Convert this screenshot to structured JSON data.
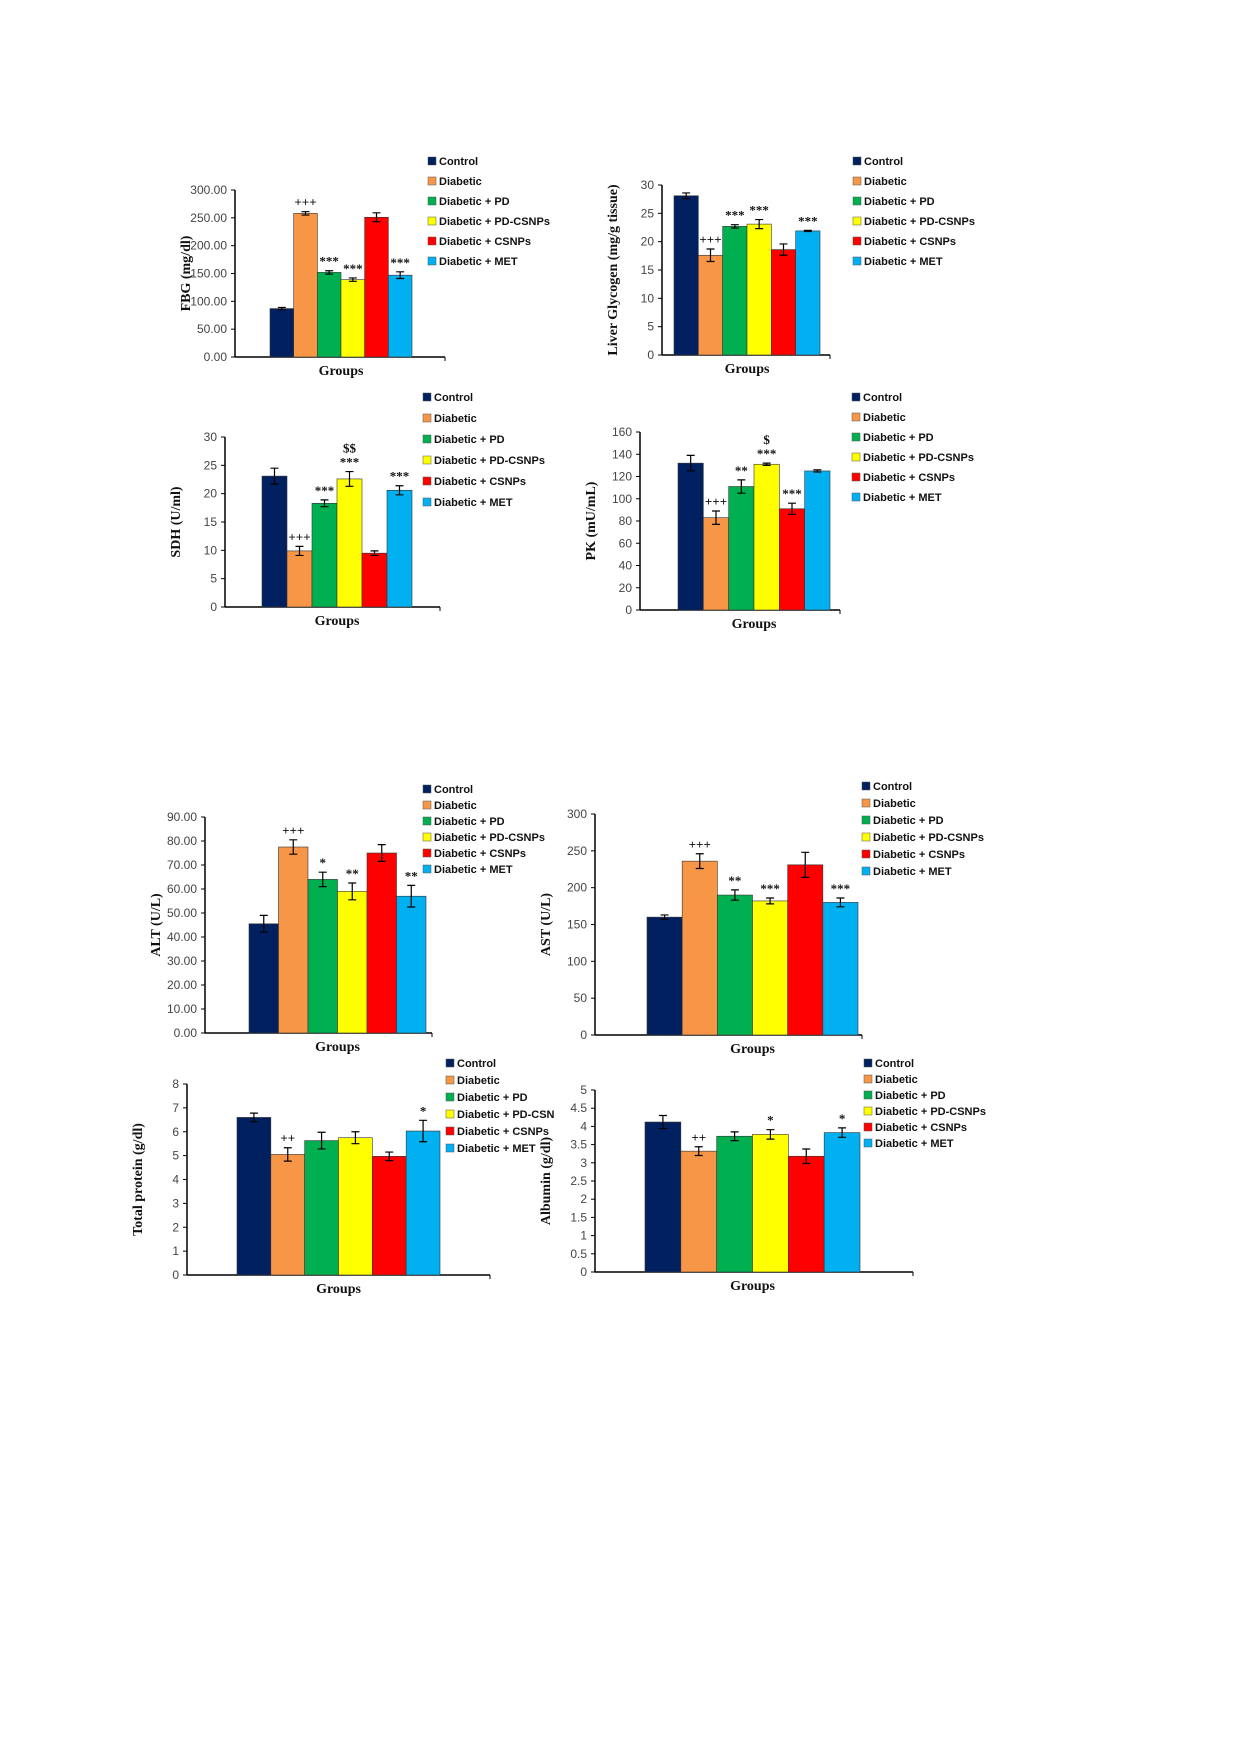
{
  "colors": [
    "#002060",
    "#f79646",
    "#00b050",
    "#ffff00",
    "#ff0000",
    "#00b0f0"
  ],
  "chart_data": [
    {
      "type": "bar",
      "ylabel": "FBG (mg/dl)",
      "xlabel": "Groups",
      "ylim": [
        0,
        300
      ],
      "yticks": [
        "0.00",
        "50.00",
        "100.00",
        "150.00",
        "200.00",
        "250.00",
        "300.00"
      ],
      "legend": [
        "Control",
        "Diabetic",
        "Diabetic + PD",
        "Diabetic + PD-CSNPs",
        "Diabetic + CSNPs",
        "Diabetic + MET"
      ],
      "values": [
        87,
        258,
        152,
        139,
        251,
        147
      ],
      "errors": [
        2,
        3,
        3,
        3,
        8,
        6
      ],
      "annotations": [
        "",
        "+++",
        "***",
        "***",
        "",
        "***"
      ]
    },
    {
      "type": "bar",
      "ylabel": "Liver Glycogen (mg/g tissue)",
      "xlabel": "Groups",
      "ylim": [
        0,
        30
      ],
      "yticks": [
        "0",
        "5",
        "10",
        "15",
        "20",
        "25",
        "30"
      ],
      "legend": [
        "Control",
        "Diabetic",
        "Diabetic + PD",
        "Diabetic + PD-CSNPs",
        "Diabetic + CSNPs",
        "Diabetic + MET"
      ],
      "values": [
        28.1,
        17.6,
        22.7,
        23.1,
        18.6,
        21.9
      ],
      "errors": [
        0.5,
        1.1,
        0.3,
        0.8,
        1.0,
        0.1
      ],
      "annotations": [
        "",
        "+++",
        "***",
        "***",
        "",
        "***"
      ]
    },
    {
      "type": "bar",
      "ylabel": "SDH (U/ml)",
      "xlabel": "Groups",
      "ylim": [
        0,
        30
      ],
      "yticks": [
        "0",
        "5",
        "10",
        "15",
        "20",
        "25",
        "30"
      ],
      "legend": [
        "Control",
        "Diabetic",
        "Diabetic + PD",
        "Diabetic + PD-CSNPs",
        "Diabetic + CSNPs",
        "Diabetic + MET"
      ],
      "values": [
        23.1,
        9.9,
        18.3,
        22.6,
        9.5,
        20.6
      ],
      "errors": [
        1.4,
        0.8,
        0.6,
        1.3,
        0.4,
        0.8
      ],
      "annotations": [
        "",
        "+++",
        "***",
        "***",
        "",
        "***"
      ],
      "annotations2": [
        "",
        "",
        "",
        "$$",
        "",
        ""
      ]
    },
    {
      "type": "bar",
      "ylabel": "PK (mU/mL)",
      "xlabel": "Groups",
      "ylim": [
        0,
        160
      ],
      "yticks": [
        "0",
        "20",
        "40",
        "60",
        "80",
        "100",
        "120",
        "140",
        "160"
      ],
      "legend": [
        "Control",
        "Diabetic",
        "Diabetic + PD",
        "Diabetic + PD-CSNPs",
        "Diabetic + CSNPs",
        "Diabetic + MET"
      ],
      "values": [
        132,
        83,
        111,
        131,
        91,
        125
      ],
      "errors": [
        7,
        6,
        6,
        1,
        5,
        1
      ],
      "annotations": [
        "",
        "+++",
        "**",
        "***",
        "***",
        ""
      ],
      "annotations2": [
        "",
        "",
        "",
        "$",
        "",
        ""
      ]
    },
    {
      "type": "bar",
      "ylabel": "ALT (U/L)",
      "xlabel": "Groups",
      "ylim": [
        0,
        90
      ],
      "yticks": [
        "0.00",
        "10.00",
        "20.00",
        "30.00",
        "40.00",
        "50.00",
        "60.00",
        "70.00",
        "80.00",
        "90.00"
      ],
      "legend": [
        "Control",
        "Diabetic",
        "Diabetic + PD",
        "Diabetic + PD-CSNPs",
        "Diabetic + CSNPs",
        "Diabetic + MET"
      ],
      "values": [
        45.5,
        77.5,
        64,
        59,
        75,
        57
      ],
      "errors": [
        3.5,
        3,
        3,
        3.5,
        3.5,
        4.5
      ],
      "annotations": [
        "",
        "+++",
        "*",
        "**",
        "",
        "**"
      ]
    },
    {
      "type": "bar",
      "ylabel": "AST (U/L)",
      "xlabel": "Groups",
      "ylim": [
        0,
        300
      ],
      "yticks": [
        "0",
        "50",
        "100",
        "150",
        "200",
        "250",
        "300"
      ],
      "legend": [
        "Control",
        "Diabetic",
        "Diabetic + PD",
        "Diabetic + PD-CSNPs",
        "Diabetic + CSNPs",
        "Diabetic + MET"
      ],
      "values": [
        160,
        236,
        190,
        182,
        231,
        180
      ],
      "errors": [
        3,
        10,
        7,
        4,
        17,
        6
      ],
      "annotations": [
        "",
        "+++",
        "**",
        "***",
        "",
        "***"
      ]
    },
    {
      "type": "bar",
      "ylabel": "Total protein (g/dl)",
      "xlabel": "Groups",
      "ylim": [
        0,
        8
      ],
      "yticks": [
        "0",
        "1",
        "2",
        "3",
        "4",
        "5",
        "6",
        "7",
        "8"
      ],
      "legend": [
        "Control",
        "Diabetic",
        "Diabetic + PD",
        "Diabetic + PD-CSN",
        "Diabetic + CSNPs",
        "Diabetic + MET"
      ],
      "values": [
        6.6,
        5.05,
        5.63,
        5.75,
        4.97,
        6.03
      ],
      "errors": [
        0.18,
        0.28,
        0.35,
        0.25,
        0.18,
        0.45
      ],
      "annotations": [
        "",
        "++",
        "",
        "",
        "",
        "*"
      ]
    },
    {
      "type": "bar",
      "ylabel": "Albumin (g/dl)",
      "xlabel": "Groups",
      "ylim": [
        0,
        5
      ],
      "yticks": [
        "0",
        "0.5",
        "1",
        "1.5",
        "2",
        "2.5",
        "3",
        "3.5",
        "4",
        "4.5",
        "5"
      ],
      "legend": [
        "Control",
        "Diabetic",
        "Diabetic + PD",
        "Diabetic + PD-CSNPs",
        "Diabetic + CSNPs",
        "Diabetic + MET"
      ],
      "values": [
        4.12,
        3.32,
        3.73,
        3.78,
        3.18,
        3.83
      ],
      "errors": [
        0.18,
        0.12,
        0.12,
        0.13,
        0.2,
        0.13
      ],
      "annotations": [
        "",
        "++",
        "",
        "*",
        "",
        "*"
      ]
    }
  ]
}
